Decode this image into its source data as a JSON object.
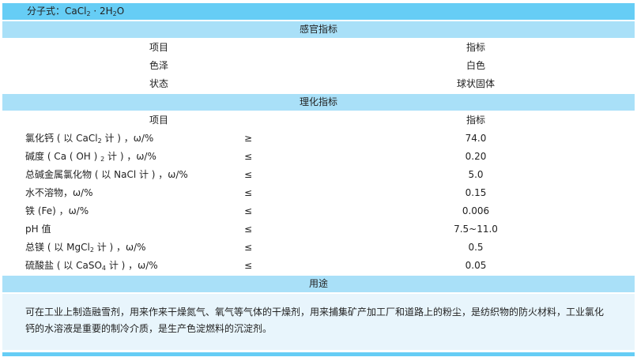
{
  "formula": {
    "label": "分子式：",
    "parts": [
      "CaCl",
      "2",
      " · 2H",
      "2",
      "O"
    ]
  },
  "sensory": {
    "title": "感官指标",
    "header": [
      "项目",
      "指标"
    ],
    "rows": [
      {
        "item": "色泽",
        "value": "白色"
      },
      {
        "item": "状态",
        "value": "球状固体"
      }
    ]
  },
  "physchem": {
    "title": "理化指标",
    "header": [
      "项目",
      "指标"
    ],
    "rows": [
      {
        "pre": "氯化钙 ( 以 CaCl",
        "sub": "2",
        "post": " 计 ) ，ω/%",
        "op": "≥",
        "value": "74.0"
      },
      {
        "pre": "碱度 ( Ca ( OH ) ",
        "sub": "2",
        "post": " 计 ) ，ω/%",
        "op": "≤",
        "value": "0.20"
      },
      {
        "pre": "总碱金属氯化物 ( 以 NaCl 计 ) ，ω/%",
        "sub": "",
        "post": "",
        "op": "≤",
        "value": "5.0"
      },
      {
        "pre": "水不溶物，ω/%",
        "sub": "",
        "post": "",
        "op": "≤",
        "value": "0.15"
      },
      {
        "pre": "铁 (Fe) ，ω/%",
        "sub": "",
        "post": "",
        "op": "≤",
        "value": "0.006"
      },
      {
        "pre": "pH 值",
        "sub": "",
        "post": "",
        "op": "≤",
        "value": "7.5~11.0"
      },
      {
        "pre": "总镁 ( 以 MgCl",
        "sub": "2",
        "post": " 计 ) ，ω/%",
        "op": "≤",
        "value": "0.5"
      },
      {
        "pre": "硫酸盐 ( 以 CaSO",
        "sub": "4",
        "post": " 计 ) ，ω/%",
        "op": "≤",
        "value": "0.05"
      }
    ]
  },
  "usage": {
    "title": "用途",
    "text": "可在工业上制造融雪剂，用来作来干燥氮气、氧气等气体的干燥剂，用来捕集矿产加工厂和道路上的粉尘，是纺织物的防火材料，工业氯化钙的水溶液是重要的制冷介质，是生产色淀燃料的沉淀剂。"
  },
  "colors": {
    "dark": "#66cdf5",
    "mid": "#a9e0f8",
    "light": "#e8f5fc"
  }
}
